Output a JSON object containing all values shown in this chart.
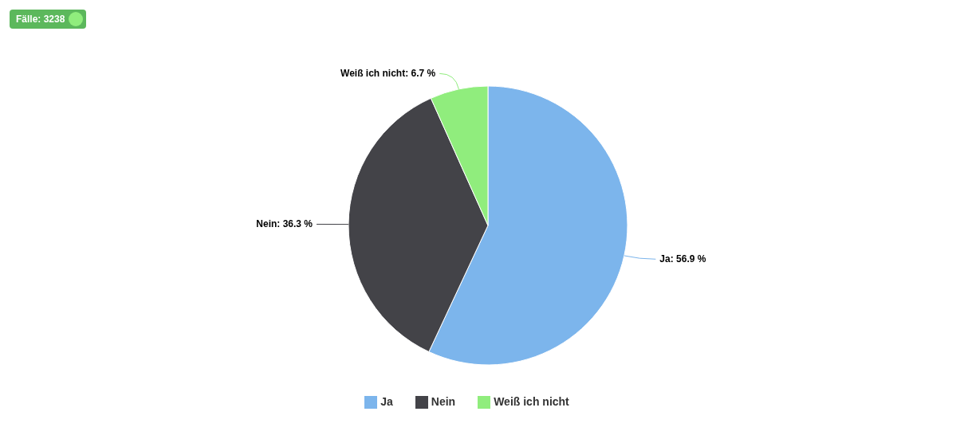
{
  "chart_data": {
    "type": "pie",
    "categories": [
      "Ja",
      "Nein",
      "Weiß ich nicht"
    ],
    "values": [
      56.9,
      36.3,
      6.7
    ],
    "value_labels": [
      "Ja: 56.9 %",
      "Nein: 36.3 %",
      "Weiß ich nicht: 6.7 %"
    ],
    "colors": [
      "#7cb5ec",
      "#434348",
      "#90ed7d"
    ],
    "legend": "bottom",
    "annotations": [
      "Fälle: 3238"
    ]
  }
}
